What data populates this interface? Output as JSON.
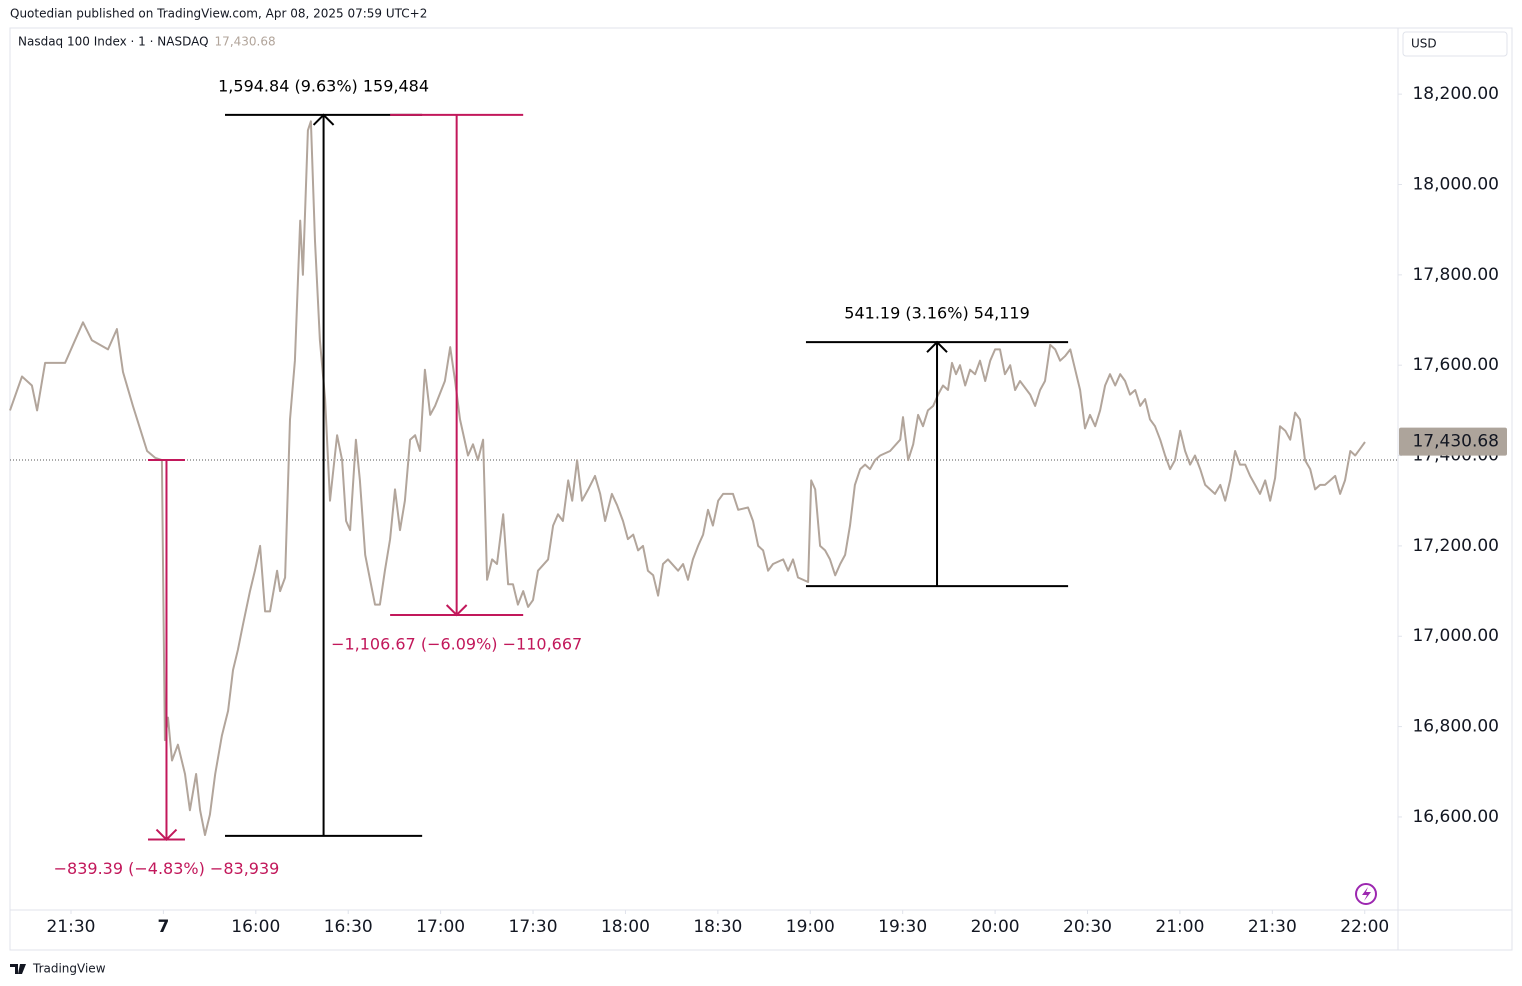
{
  "header": {
    "published": "Quotedian published on TradingView.com, Apr 08, 2025 07:59 UTC+2",
    "currency": "USD",
    "footer": "TradingView"
  },
  "chart_data": {
    "type": "line",
    "series": [
      {
        "name": "Nasdaq 100 Index · 1 · NASDAQ",
        "color": "#b2a59b",
        "values": [
          17500,
          17575,
          17555,
          17500,
          17605,
          17605,
          17605,
          17655,
          17695,
          17655,
          17635,
          17680,
          17585,
          17510,
          17460,
          17410,
          17395,
          17390,
          16770,
          16820,
          16725,
          16760,
          16695,
          16615,
          16695,
          16615,
          16560,
          16605,
          16695,
          16780,
          16835,
          16925,
          16970,
          17025,
          17100,
          17145,
          17200,
          17055,
          17055,
          17145,
          17100,
          17130,
          17480,
          17610,
          17920,
          17800,
          18120,
          18140,
          17875,
          17655,
          17525,
          17300,
          17445,
          17390,
          17255,
          17235,
          17435,
          17345,
          17180,
          17125,
          17070,
          17070,
          17145,
          17215,
          17325,
          17235,
          17300,
          17435,
          17445,
          17410,
          17590,
          17490,
          17510,
          17565,
          17640,
          17565,
          17480,
          17400,
          17425,
          17390,
          17435,
          17125,
          17170,
          17160,
          17270,
          17115,
          17115,
          17070,
          17100,
          17065,
          17080,
          17145,
          17170,
          17245,
          17270,
          17255,
          17345,
          17300,
          17390,
          17300,
          17325,
          17355,
          17315,
          17255,
          17315,
          17290,
          17255,
          17215,
          17225,
          17190,
          17200,
          17145,
          17135,
          17090,
          17160,
          17170,
          17145,
          17160,
          17125,
          17170,
          17200,
          17225,
          17280,
          17245,
          17300,
          17315,
          17315,
          17280,
          17285,
          17255,
          17200,
          17190,
          17145,
          17160,
          17170,
          17145,
          17170,
          17130,
          17120,
          17345,
          17325,
          17200,
          17190,
          17170,
          17135,
          17160,
          17180,
          17245,
          17335,
          17370,
          17380,
          17370,
          17390,
          17400,
          17410,
          17435,
          17485,
          17390,
          17425,
          17490,
          17465,
          17500,
          17510,
          17535,
          17555,
          17545,
          17605,
          17580,
          17600,
          17555,
          17590,
          17580,
          17610,
          17565,
          17610,
          17635,
          17635,
          17580,
          17600,
          17545,
          17565,
          17535,
          17510,
          17545,
          17565,
          17645,
          17635,
          17610,
          17620,
          17635,
          17590,
          17545,
          17460,
          17490,
          17465,
          17500,
          17555,
          17580,
          17555,
          17580,
          17565,
          17535,
          17545,
          17510,
          17525,
          17480,
          17465,
          17435,
          17400,
          17370,
          17390,
          17455,
          17410,
          17380,
          17400,
          17370,
          17335,
          17325,
          17315,
          17335,
          17300,
          17345,
          17410,
          17380,
          17380,
          17355,
          17335,
          17315,
          17345,
          17300,
          17350,
          17465,
          17455,
          17435,
          17495,
          17480,
          17390,
          17370,
          17325,
          17335,
          17335,
          17345,
          17355,
          17315,
          17345,
          17410,
          17400,
          17415,
          17430
        ]
      }
    ],
    "x": [
      -19.8,
      -15.9,
      -12.7,
      -11.0,
      -8.4,
      -4.5,
      -1.9,
      1.3,
      3.9,
      6.8,
      12.0,
      14.9,
      16.9,
      20.1,
      22.4,
      24.7,
      27.3,
      29.5,
      30.5,
      31.5,
      32.8,
      34.7,
      37.0,
      38.6,
      40.6,
      41.9,
      43.5,
      45.1,
      46.8,
      49.0,
      51.0,
      52.6,
      54.2,
      55.8,
      58.1,
      59.7,
      61.4,
      63.0,
      64.6,
      66.9,
      67.9,
      69.5,
      71.1,
      72.7,
      74.4,
      75.3,
      76.9,
      77.9,
      79.2,
      80.8,
      82.5,
      84.1,
      86.4,
      88.0,
      89.3,
      90.6,
      92.5,
      93.8,
      95.5,
      97.1,
      98.7,
      100.3,
      101.9,
      103.6,
      105.2,
      106.8,
      108.4,
      110.1,
      111.7,
      113.3,
      114.9,
      116.6,
      118.2,
      121.4,
      123.1,
      124.7,
      126.3,
      128.9,
      130.5,
      132.1,
      133.8,
      135.1,
      136.7,
      138.3,
      140.3,
      141.9,
      143.5,
      145.1,
      146.8,
      148.4,
      150.0,
      151.6,
      154.9,
      156.5,
      158.1,
      159.7,
      161.4,
      162.7,
      164.3,
      165.9,
      167.9,
      170.1,
      171.8,
      173.4,
      175.6,
      177.3,
      179.2,
      180.8,
      182.5,
      184.1,
      185.7,
      187.3,
      189.0,
      190.6,
      192.2,
      193.8,
      197.1,
      198.7,
      200.3,
      201.9,
      203.6,
      205.2,
      206.8,
      208.4,
      210.1,
      211.7,
      214.9,
      216.6,
      219.8,
      221.4,
      223.1,
      224.7,
      226.3,
      227.9,
      231.2,
      232.8,
      234.4,
      236.0,
      239.3,
      240.3,
      241.6,
      243.2,
      244.8,
      246.4,
      248.1,
      249.7,
      251.3,
      252.9,
      254.5,
      256.2,
      257.8,
      259.4,
      261.0,
      262.7,
      265.9,
      269.2,
      270.1,
      271.8,
      273.4,
      275.0,
      276.6,
      278.2,
      279.9,
      281.5,
      283.1,
      284.7,
      286.0,
      287.3,
      288.6,
      290.3,
      291.9,
      293.5,
      295.1,
      296.8,
      298.4,
      300.0,
      301.6,
      303.2,
      304.9,
      306.5,
      308.1,
      311.4,
      313.0,
      314.6,
      316.2,
      317.9,
      319.5,
      321.1,
      322.7,
      324.4,
      326.0,
      327.6,
      329.2,
      330.8,
      332.5,
      334.1,
      335.7,
      337.3,
      339.0,
      340.6,
      342.2,
      343.8,
      345.5,
      347.1,
      348.7,
      350.3,
      351.9,
      353.6,
      355.2,
      356.8,
      358.4,
      360.1,
      361.7,
      363.3,
      364.9,
      366.6,
      368.2,
      369.8,
      371.4,
      373.1,
      374.7,
      376.3,
      377.9,
      379.5,
      381.2,
      382.8,
      384.4,
      386.0,
      387.7,
      389.3,
      390.9,
      392.5,
      394.2,
      395.8,
      397.4,
      399.0,
      400.6,
      402.3,
      403.9,
      405.5,
      407.1,
      408.8,
      410.4,
      412.0,
      413.6,
      415.3,
      416.9,
      418.5,
      420.1
    ],
    "xlim": [
      -19.8,
      430.8
    ],
    "xticks": [
      {
        "value": 0,
        "label": "21:30"
      },
      {
        "value": 30,
        "label": "7"
      },
      {
        "value": 60,
        "label": "16:00"
      },
      {
        "value": 90,
        "label": "16:30"
      },
      {
        "value": 120,
        "label": "17:00"
      },
      {
        "value": 150,
        "label": "17:30"
      },
      {
        "value": 180,
        "label": "18:00"
      },
      {
        "value": 210,
        "label": "18:30"
      },
      {
        "value": 240,
        "label": "19:00"
      },
      {
        "value": 270,
        "label": "19:30"
      },
      {
        "value": 300,
        "label": "20:00"
      },
      {
        "value": 330,
        "label": "20:30"
      },
      {
        "value": 360,
        "label": "21:00"
      },
      {
        "value": 390,
        "label": "21:30"
      },
      {
        "value": 420,
        "label": "22:00"
      }
    ],
    "ylim": [
      16394,
      18342
    ],
    "yticks": [
      {
        "value": 16600,
        "label": "16,600.00"
      },
      {
        "value": 16800,
        "label": "16,800.00"
      },
      {
        "value": 17000,
        "label": "17,000.00"
      },
      {
        "value": 17200,
        "label": "17,200.00"
      },
      {
        "value": 17400,
        "label": "17,400.00"
      },
      {
        "value": 17600,
        "label": "17,600.00"
      },
      {
        "value": 17800,
        "label": "17,800.00"
      },
      {
        "value": 18000,
        "label": "18,000.00"
      },
      {
        "value": 18200,
        "label": "18,200.00"
      }
    ],
    "last_price": {
      "value": 17430.68,
      "label": "17,430.68"
    },
    "reference_line": 17390,
    "measurements": [
      {
        "label": "−839.39 (−4.83%) −83,939",
        "color": "#c2185b",
        "x": [
          25.0,
          37.0
        ],
        "from": 17390,
        "to": 16550
      },
      {
        "label": "1,594.84 (9.63%) 159,484",
        "color": "#000000",
        "x": [
          50.0,
          114.0
        ],
        "from": 16558,
        "to": 18154
      },
      {
        "label": "−1,106.67 (−6.09%) −110,667",
        "color": "#c2185b",
        "x": [
          103.6,
          146.8
        ],
        "from": 18154,
        "to": 17047
      },
      {
        "label": "541.19 (3.16%) 54,119",
        "color": "#000000",
        "x": [
          238.6,
          323.7
        ],
        "from": 17111,
        "to": 17651
      }
    ]
  }
}
